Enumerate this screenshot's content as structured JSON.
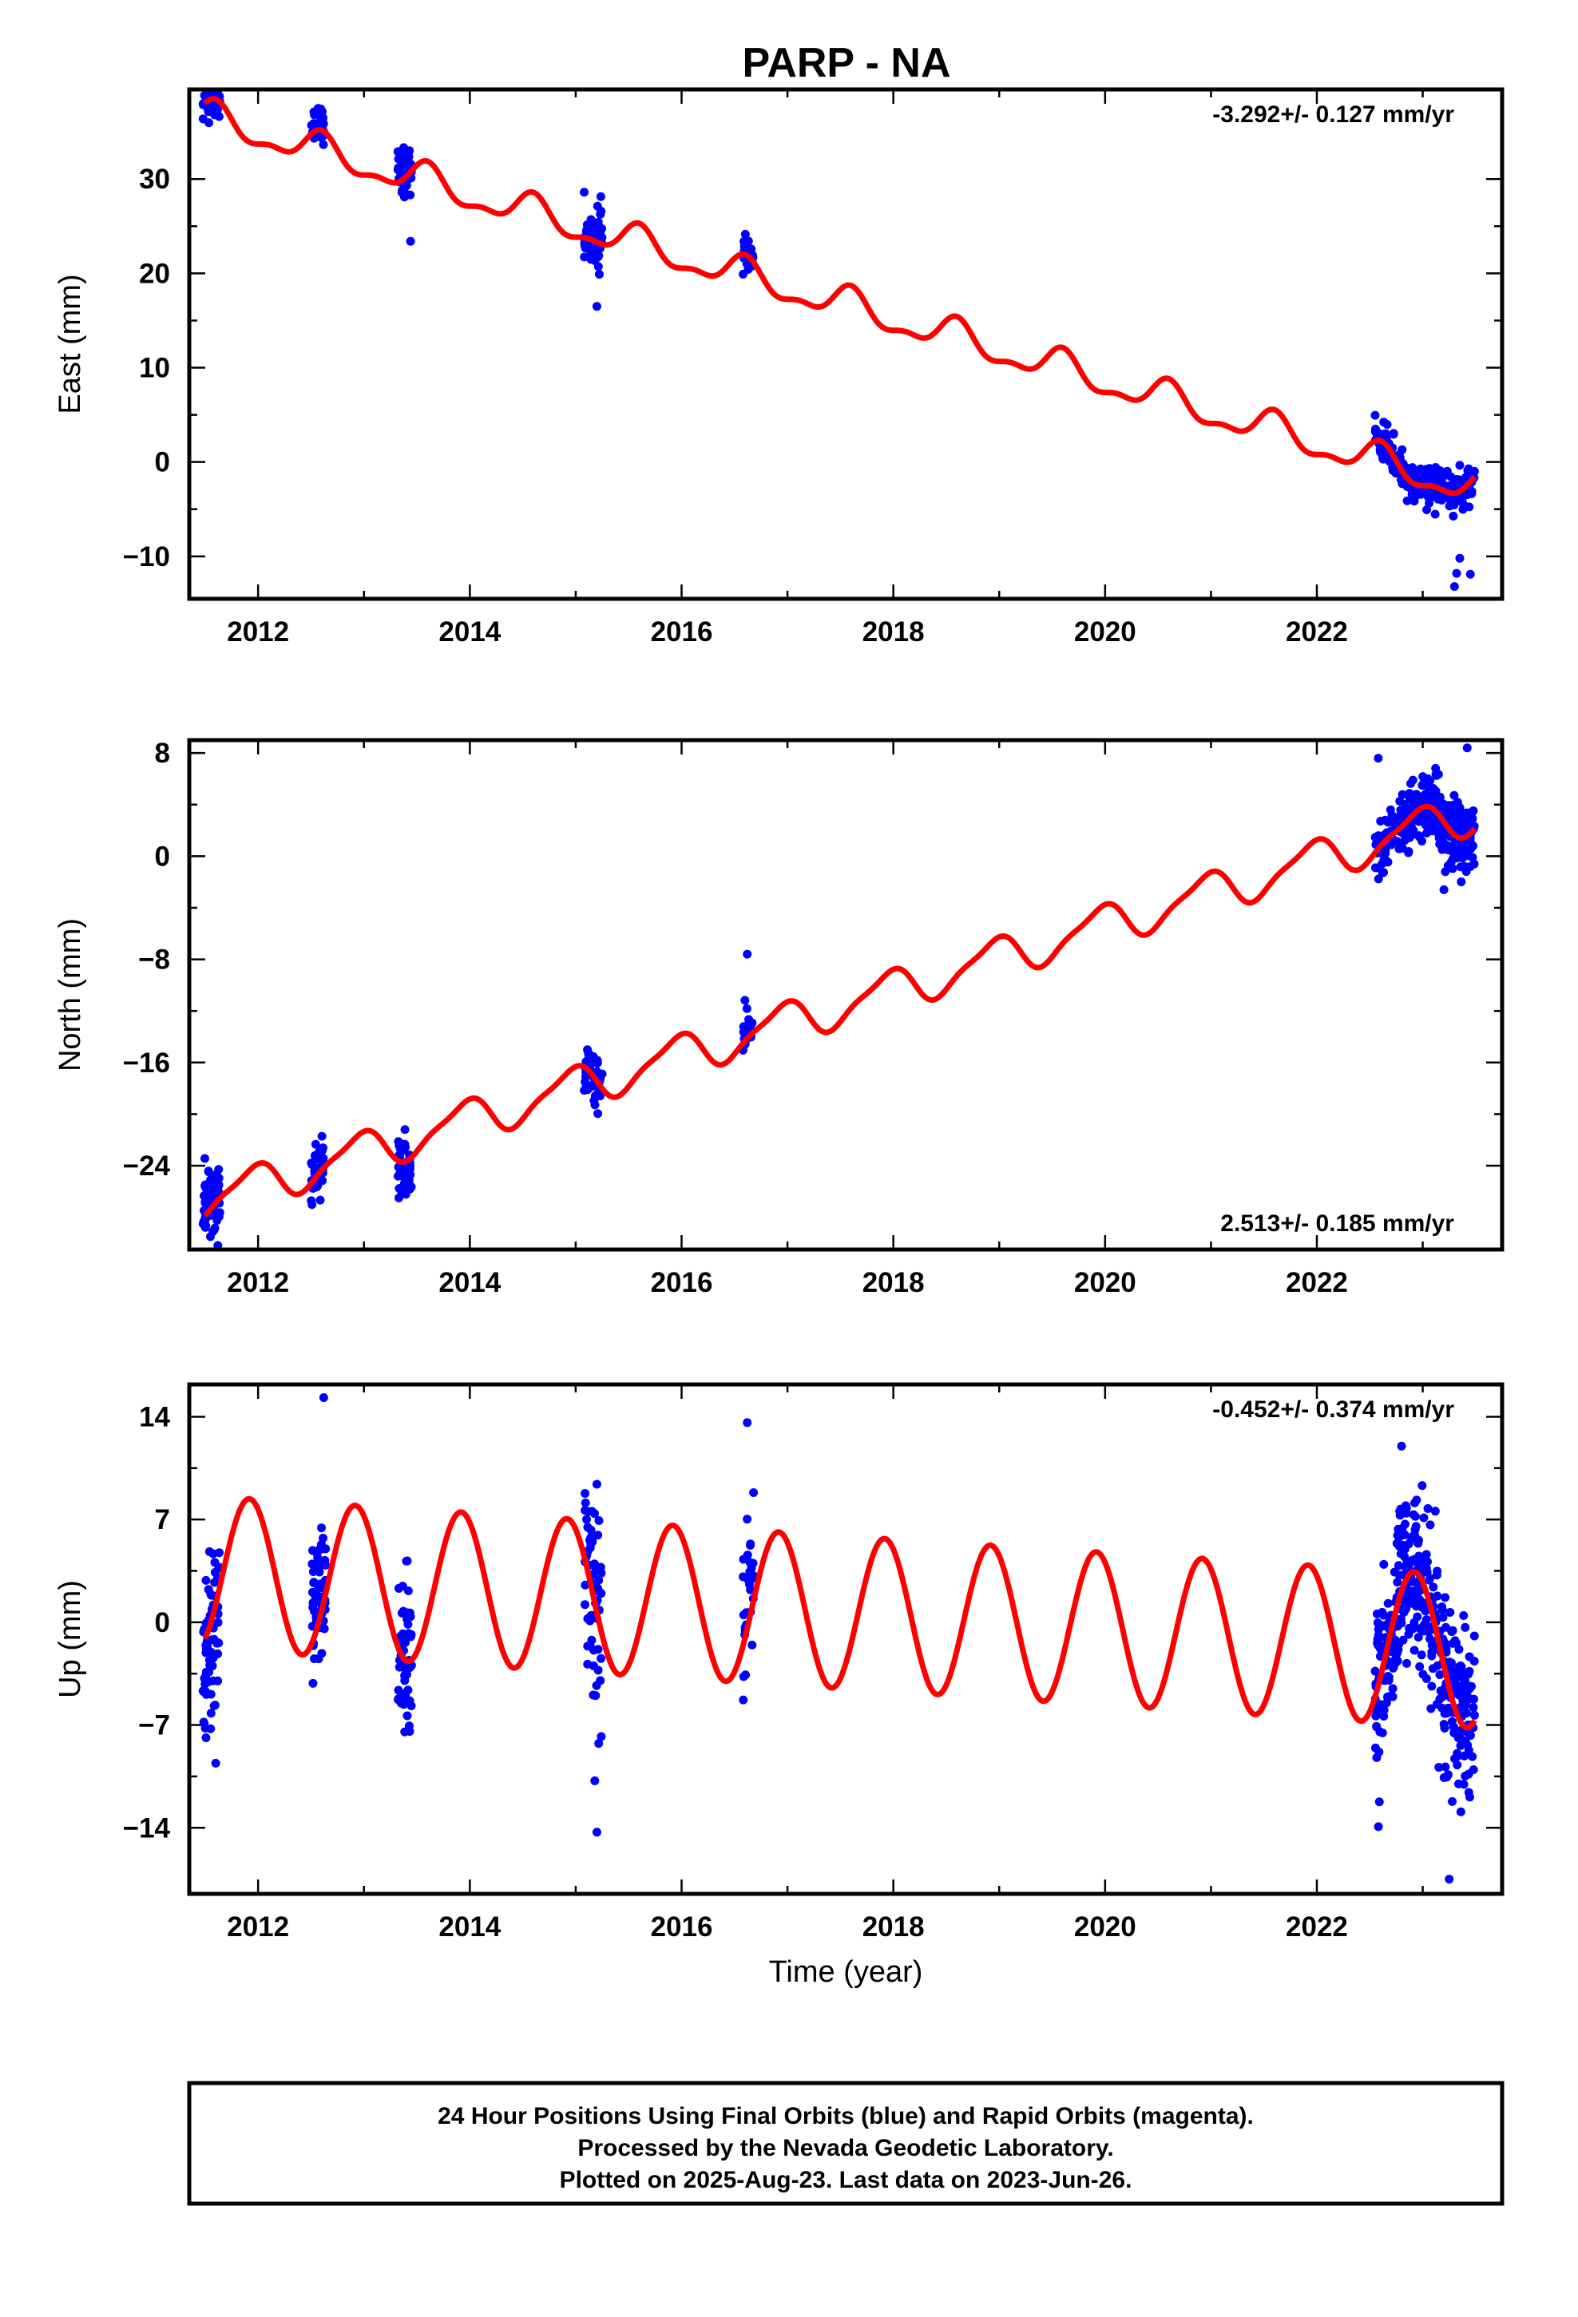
{
  "title": "PARP - NA",
  "colors": {
    "dots": "#0000ff",
    "model": "#ff0000",
    "axis": "#000000"
  },
  "chart_data": [
    {
      "type": "scatter",
      "panel": "east",
      "ylabel": "East (mm)",
      "rate_text": "-3.292+/- 0.127 mm/yr",
      "rate_position": "top-right",
      "xlim": [
        2011.35,
        2023.75
      ],
      "ylim": [
        -14.5,
        39.5
      ],
      "x_ticks": [
        2012,
        2014,
        2016,
        2018,
        2020,
        2022
      ],
      "x_tick_labels": [
        "2012",
        "2014",
        "2016",
        "2018",
        "2020",
        "2022"
      ],
      "y_ticks": [
        -10,
        0,
        10,
        20,
        30
      ],
      "y_tick_labels": [
        "−10",
        "0",
        "10",
        "20",
        "30"
      ],
      "model": {
        "t0": 2011.5,
        "y0": 36.5,
        "rate": -3.292,
        "annual_amp": 1.6,
        "annual_phase": 1.0,
        "semi_amp": 0.7,
        "semi_phase": 0.3
      },
      "scatter_clusters": [
        {
          "t_start": 2011.48,
          "t_end": 2011.64,
          "n": 60,
          "spread": 1.2,
          "offset": 0.5
        },
        {
          "t_start": 2012.5,
          "t_end": 2012.62,
          "n": 45,
          "spread": 0.9,
          "offset": 0.6
        },
        {
          "t_start": 2013.32,
          "t_end": 2013.45,
          "n": 45,
          "spread": 1.3,
          "offset": 0.5
        },
        {
          "t_start": 2015.08,
          "t_end": 2015.25,
          "n": 55,
          "spread": 1.6,
          "offset": 0.4
        },
        {
          "t_start": 2016.58,
          "t_end": 2016.68,
          "n": 30,
          "spread": 0.7,
          "offset": 0.3
        },
        {
          "t_start": 2022.55,
          "t_end": 2023.49,
          "n": 260,
          "spread": 1.0,
          "offset": 0.0
        }
      ],
      "outliers": [
        [
          2015.08,
          28.6
        ],
        [
          2013.44,
          23.4
        ],
        [
          2015.2,
          16.5
        ],
        [
          2023.3,
          -13.2
        ],
        [
          2023.32,
          -11.8
        ],
        [
          2023.45,
          -11.9
        ],
        [
          2023.35,
          -10.2
        ]
      ]
    },
    {
      "type": "scatter",
      "panel": "north",
      "ylabel": "North (mm)",
      "rate_text": "2.513+/- 0.185 mm/yr",
      "rate_position": "bottom-right",
      "xlim": [
        2011.35,
        2023.75
      ],
      "ylim": [
        -30.5,
        9.0
      ],
      "x_ticks": [
        2012,
        2014,
        2016,
        2018,
        2020,
        2022
      ],
      "x_tick_labels": [
        "2012",
        "2014",
        "2016",
        "2018",
        "2020",
        "2022"
      ],
      "y_ticks": [
        -24,
        -16,
        -8,
        0,
        8
      ],
      "y_tick_labels": [
        "−24",
        "−16",
        "−8",
        "0",
        "8"
      ],
      "model": {
        "t0": 2011.5,
        "y0": -26.7,
        "rate": 2.513,
        "annual_amp": 1.5,
        "annual_phase": -1.2,
        "semi_amp": 0.4,
        "semi_phase": 0.5
      },
      "scatter_clusters": [
        {
          "t_start": 2011.48,
          "t_end": 2011.64,
          "n": 70,
          "spread": 1.4,
          "offset": 0.2
        },
        {
          "t_start": 2012.5,
          "t_end": 2012.62,
          "n": 40,
          "spread": 1.0,
          "offset": 0.2
        },
        {
          "t_start": 2013.32,
          "t_end": 2013.45,
          "n": 45,
          "spread": 1.2,
          "offset": -0.5
        },
        {
          "t_start": 2015.08,
          "t_end": 2015.25,
          "n": 50,
          "spread": 1.0,
          "offset": 0.0
        },
        {
          "t_start": 2016.58,
          "t_end": 2016.68,
          "n": 25,
          "spread": 0.9,
          "offset": 0.3
        },
        {
          "t_start": 2022.55,
          "t_end": 2023.49,
          "n": 320,
          "spread": 1.3,
          "offset": 0.0
        }
      ],
      "outliers": [
        [
          2011.55,
          -29.5
        ],
        [
          2013.33,
          -26.5
        ],
        [
          2016.62,
          -7.6
        ],
        [
          2022.58,
          7.6
        ],
        [
          2023.42,
          8.4
        ],
        [
          2023.2,
          -2.6
        ]
      ]
    },
    {
      "type": "scatter",
      "panel": "up",
      "ylabel": "Up (mm)",
      "xlabel": "Time (year)",
      "rate_text": "-0.452+/- 0.374 mm/yr",
      "rate_position": "top-right",
      "xlim": [
        2011.35,
        2023.75
      ],
      "ylim": [
        -18.5,
        16.2
      ],
      "x_ticks": [
        2012,
        2014,
        2016,
        2018,
        2020,
        2022
      ],
      "x_tick_labels": [
        "2012",
        "2014",
        "2016",
        "2018",
        "2020",
        "2022"
      ],
      "y_ticks": [
        -14,
        -7,
        0,
        7,
        14
      ],
      "y_tick_labels": [
        "−14",
        "−7",
        "0",
        "7",
        "14"
      ],
      "model": {
        "t0": 2011.5,
        "y0": 3.4,
        "rate": -0.452,
        "annual_amp": 5.2,
        "annual_phase": -1.05,
        "semi_amp": 0.0,
        "semi_phase": 0.0
      },
      "scatter_clusters": [
        {
          "t_start": 2011.48,
          "t_end": 2011.64,
          "n": 70,
          "spread": 3.2,
          "offset": -2.0
        },
        {
          "t_start": 2012.5,
          "t_end": 2012.64,
          "n": 55,
          "spread": 2.2,
          "offset": 1.5
        },
        {
          "t_start": 2013.32,
          "t_end": 2013.45,
          "n": 55,
          "spread": 3.0,
          "offset": 0.0
        },
        {
          "t_start": 2015.08,
          "t_end": 2015.25,
          "n": 60,
          "spread": 3.2,
          "offset": 0.0
        },
        {
          "t_start": 2016.58,
          "t_end": 2016.68,
          "n": 30,
          "spread": 2.5,
          "offset": 2.0
        },
        {
          "t_start": 2022.55,
          "t_end": 2023.49,
          "n": 380,
          "spread": 2.9,
          "offset": 0.0
        }
      ],
      "outliers": [
        [
          2012.62,
          15.3
        ],
        [
          2016.62,
          13.6
        ],
        [
          2011.6,
          -9.6
        ],
        [
          2015.2,
          -14.3
        ],
        [
          2015.18,
          -10.8
        ],
        [
          2023.25,
          -17.5
        ],
        [
          2022.8,
          12.0
        ],
        [
          2015.2,
          9.4
        ]
      ]
    }
  ],
  "footer": {
    "line1": "24 Hour Positions Using Final Orbits (blue) and Rapid Orbits (magenta).",
    "line2": "Processed by the Nevada Geodetic Laboratory.",
    "line3": "Plotted on 2025-Aug-23. Last data on 2023-Jun-26."
  }
}
